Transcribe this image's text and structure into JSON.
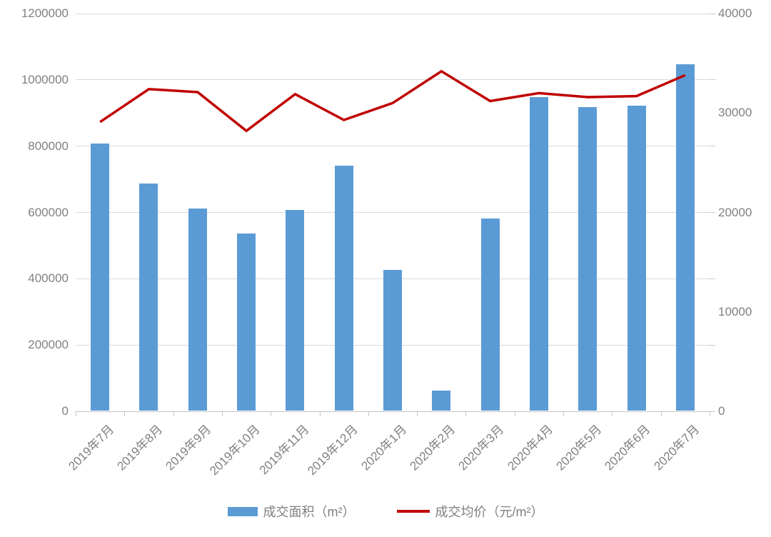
{
  "chart_data": {
    "type": "bar",
    "subtype": "bar-and-line-dual-axis",
    "title": "",
    "categories": [
      "2019年7月",
      "2019年8月",
      "2019年9月",
      "2019年10月",
      "2019年11月",
      "2019年12月",
      "2020年1月",
      "2020年2月",
      "2020年3月",
      "2020年4月",
      "2020年5月",
      "2020年6月",
      "2020年7月"
    ],
    "series": [
      {
        "name": "成交面积（m²）",
        "type": "bar",
        "axis": "left",
        "color": "#5b9bd5",
        "values": [
          805000,
          685000,
          610000,
          535000,
          605000,
          740000,
          425000,
          60000,
          580000,
          945000,
          915000,
          920000,
          1045000
        ]
      },
      {
        "name": "成交均价（元/m²）",
        "type": "line",
        "axis": "right",
        "color": "#c00000",
        "values": [
          29100,
          32400,
          32100,
          28200,
          31900,
          29300,
          31000,
          34200,
          31200,
          32000,
          31600,
          31700,
          33800
        ]
      }
    ],
    "left_axis": {
      "min": 0,
      "max": 1200000,
      "step": 200000,
      "tick_labels": [
        "0",
        "200000",
        "400000",
        "600000",
        "800000",
        "1000000",
        "1200000"
      ]
    },
    "right_axis": {
      "min": 0,
      "max": 40000,
      "step": 10000,
      "tick_labels": [
        "0",
        "10000",
        "20000",
        "30000",
        "40000"
      ]
    },
    "grid": true,
    "legend_position": "bottom"
  },
  "styles": {
    "bar_color": "#5b9bd5",
    "line_color": "#c00000",
    "grid_color": "#d9d9d9",
    "axis_color": "#c6c6c6",
    "label_color": "#808080"
  }
}
